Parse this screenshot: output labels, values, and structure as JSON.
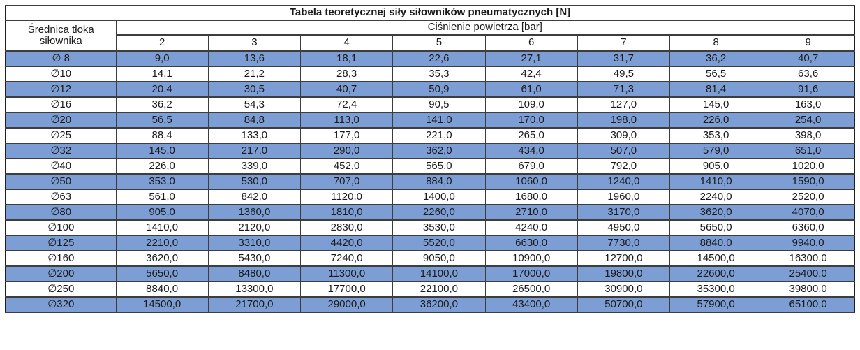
{
  "table": {
    "title": "Tabela teoretycznej siły siłowników pneumatycznych [N]",
    "diameter_header": "Średnica tłoka siłownika",
    "pressure_header": "Ciśnienie powietrza [bar]",
    "pressures": [
      "2",
      "3",
      "4",
      "5",
      "6",
      "7",
      "8",
      "9"
    ],
    "rows": [
      {
        "label": "∅ 8",
        "highlighted": true,
        "values": [
          "9,0",
          "13,6",
          "18,1",
          "22,6",
          "27,1",
          "31,7",
          "36,2",
          "40,7"
        ]
      },
      {
        "label": "∅10",
        "highlighted": false,
        "values": [
          "14,1",
          "21,2",
          "28,3",
          "35,3",
          "42,4",
          "49,5",
          "56,5",
          "63,6"
        ]
      },
      {
        "label": "∅12",
        "highlighted": true,
        "values": [
          "20,4",
          "30,5",
          "40,7",
          "50,9",
          "61,0",
          "71,3",
          "81,4",
          "91,6"
        ]
      },
      {
        "label": "∅16",
        "highlighted": false,
        "values": [
          "36,2",
          "54,3",
          "72,4",
          "90,5",
          "109,0",
          "127,0",
          "145,0",
          "163,0"
        ]
      },
      {
        "label": "∅20",
        "highlighted": true,
        "values": [
          "56,5",
          "84,8",
          "113,0",
          "141,0",
          "170,0",
          "198,0",
          "226,0",
          "254,0"
        ]
      },
      {
        "label": "∅25",
        "highlighted": false,
        "values": [
          "88,4",
          "133,0",
          "177,0",
          "221,0",
          "265,0",
          "309,0",
          "353,0",
          "398,0"
        ]
      },
      {
        "label": "∅32",
        "highlighted": true,
        "values": [
          "145,0",
          "217,0",
          "290,0",
          "362,0",
          "434,0",
          "507,0",
          "579,0",
          "651,0"
        ]
      },
      {
        "label": "∅40",
        "highlighted": false,
        "values": [
          "226,0",
          "339,0",
          "452,0",
          "565,0",
          "679,0",
          "792,0",
          "905,0",
          "1020,0"
        ]
      },
      {
        "label": "∅50",
        "highlighted": true,
        "values": [
          "353,0",
          "530,0",
          "707,0",
          "884,0",
          "1060,0",
          "1240,0",
          "1410,0",
          "1590,0"
        ]
      },
      {
        "label": "∅63",
        "highlighted": false,
        "values": [
          "561,0",
          "842,0",
          "1120,0",
          "1400,0",
          "1680,0",
          "1960,0",
          "2240,0",
          "2520,0"
        ]
      },
      {
        "label": "∅80",
        "highlighted": true,
        "values": [
          "905,0",
          "1360,0",
          "1810,0",
          "2260,0",
          "2710,0",
          "3170,0",
          "3620,0",
          "4070,0"
        ]
      },
      {
        "label": "∅100",
        "highlighted": false,
        "values": [
          "1410,0",
          "2120,0",
          "2830,0",
          "3530,0",
          "4240,0",
          "4950,0",
          "5650,0",
          "6360,0"
        ]
      },
      {
        "label": "∅125",
        "highlighted": true,
        "values": [
          "2210,0",
          "3310,0",
          "4420,0",
          "5520,0",
          "6630,0",
          "7730,0",
          "8840,0",
          "9940,0"
        ]
      },
      {
        "label": "∅160",
        "highlighted": false,
        "values": [
          "3620,0",
          "5430,0",
          "7240,0",
          "9050,0",
          "10900,0",
          "12700,0",
          "14500,0",
          "16300,0"
        ]
      },
      {
        "label": "∅200",
        "highlighted": true,
        "values": [
          "5650,0",
          "8480,0",
          "11300,0",
          "14100,0",
          "17000,0",
          "19800,0",
          "22600,0",
          "25400,0"
        ]
      },
      {
        "label": "∅250",
        "highlighted": false,
        "values": [
          "8840,0",
          "13300,0",
          "17700,0",
          "22100,0",
          "26500,0",
          "30900,0",
          "35300,0",
          "39800,0"
        ]
      },
      {
        "label": "∅320",
        "highlighted": true,
        "values": [
          "14500,0",
          "21700,0",
          "29000,0",
          "36200,0",
          "43400,0",
          "50700,0",
          "57900,0",
          "65100,0"
        ]
      }
    ],
    "colors": {
      "row_highlight": "#7d9ed4",
      "border": "#3d3d3d",
      "text": "#1a1a1a"
    }
  },
  "chart_data": {
    "type": "table",
    "title": "Tabela teoretycznej siły siłowników pneumatycznych [N]",
    "xlabel": "Ciśnienie powietrza [bar]",
    "ylabel": "Średnica tłoka siłownika",
    "columns_bar": [
      2,
      3,
      4,
      5,
      6,
      7,
      8,
      9
    ],
    "series": [
      {
        "name": "∅ 8",
        "values": [
          9.0,
          13.6,
          18.1,
          22.6,
          27.1,
          31.7,
          36.2,
          40.7
        ]
      },
      {
        "name": "∅10",
        "values": [
          14.1,
          21.2,
          28.3,
          35.3,
          42.4,
          49.5,
          56.5,
          63.6
        ]
      },
      {
        "name": "∅12",
        "values": [
          20.4,
          30.5,
          40.7,
          50.9,
          61.0,
          71.3,
          81.4,
          91.6
        ]
      },
      {
        "name": "∅16",
        "values": [
          36.2,
          54.3,
          72.4,
          90.5,
          109.0,
          127.0,
          145.0,
          163.0
        ]
      },
      {
        "name": "∅20",
        "values": [
          56.5,
          84.8,
          113.0,
          141.0,
          170.0,
          198.0,
          226.0,
          254.0
        ]
      },
      {
        "name": "∅25",
        "values": [
          88.4,
          133.0,
          177.0,
          221.0,
          265.0,
          309.0,
          353.0,
          398.0
        ]
      },
      {
        "name": "∅32",
        "values": [
          145.0,
          217.0,
          290.0,
          362.0,
          434.0,
          507.0,
          579.0,
          651.0
        ]
      },
      {
        "name": "∅40",
        "values": [
          226.0,
          339.0,
          452.0,
          565.0,
          679.0,
          792.0,
          905.0,
          1020.0
        ]
      },
      {
        "name": "∅50",
        "values": [
          353.0,
          530.0,
          707.0,
          884.0,
          1060.0,
          1240.0,
          1410.0,
          1590.0
        ]
      },
      {
        "name": "∅63",
        "values": [
          561.0,
          842.0,
          1120.0,
          1400.0,
          1680.0,
          1960.0,
          2240.0,
          2520.0
        ]
      },
      {
        "name": "∅80",
        "values": [
          905.0,
          1360.0,
          1810.0,
          2260.0,
          2710.0,
          3170.0,
          3620.0,
          4070.0
        ]
      },
      {
        "name": "∅100",
        "values": [
          1410.0,
          2120.0,
          2830.0,
          3530.0,
          4240.0,
          4950.0,
          5650.0,
          6360.0
        ]
      },
      {
        "name": "∅125",
        "values": [
          2210.0,
          3310.0,
          4420.0,
          5520.0,
          6630.0,
          7730.0,
          8840.0,
          9940.0
        ]
      },
      {
        "name": "∅160",
        "values": [
          3620.0,
          5430.0,
          7240.0,
          9050.0,
          10900.0,
          12700.0,
          14500.0,
          16300.0
        ]
      },
      {
        "name": "∅200",
        "values": [
          5650.0,
          8480.0,
          11300.0,
          14100.0,
          17000.0,
          19800.0,
          22600.0,
          25400.0
        ]
      },
      {
        "name": "∅250",
        "values": [
          8840.0,
          13300.0,
          17700.0,
          22100.0,
          26500.0,
          30900.0,
          35300.0,
          39800.0
        ]
      },
      {
        "name": "∅320",
        "values": [
          14500.0,
          21700.0,
          29000.0,
          36200.0,
          43400.0,
          50700.0,
          57900.0,
          65100.0
        ]
      }
    ]
  }
}
